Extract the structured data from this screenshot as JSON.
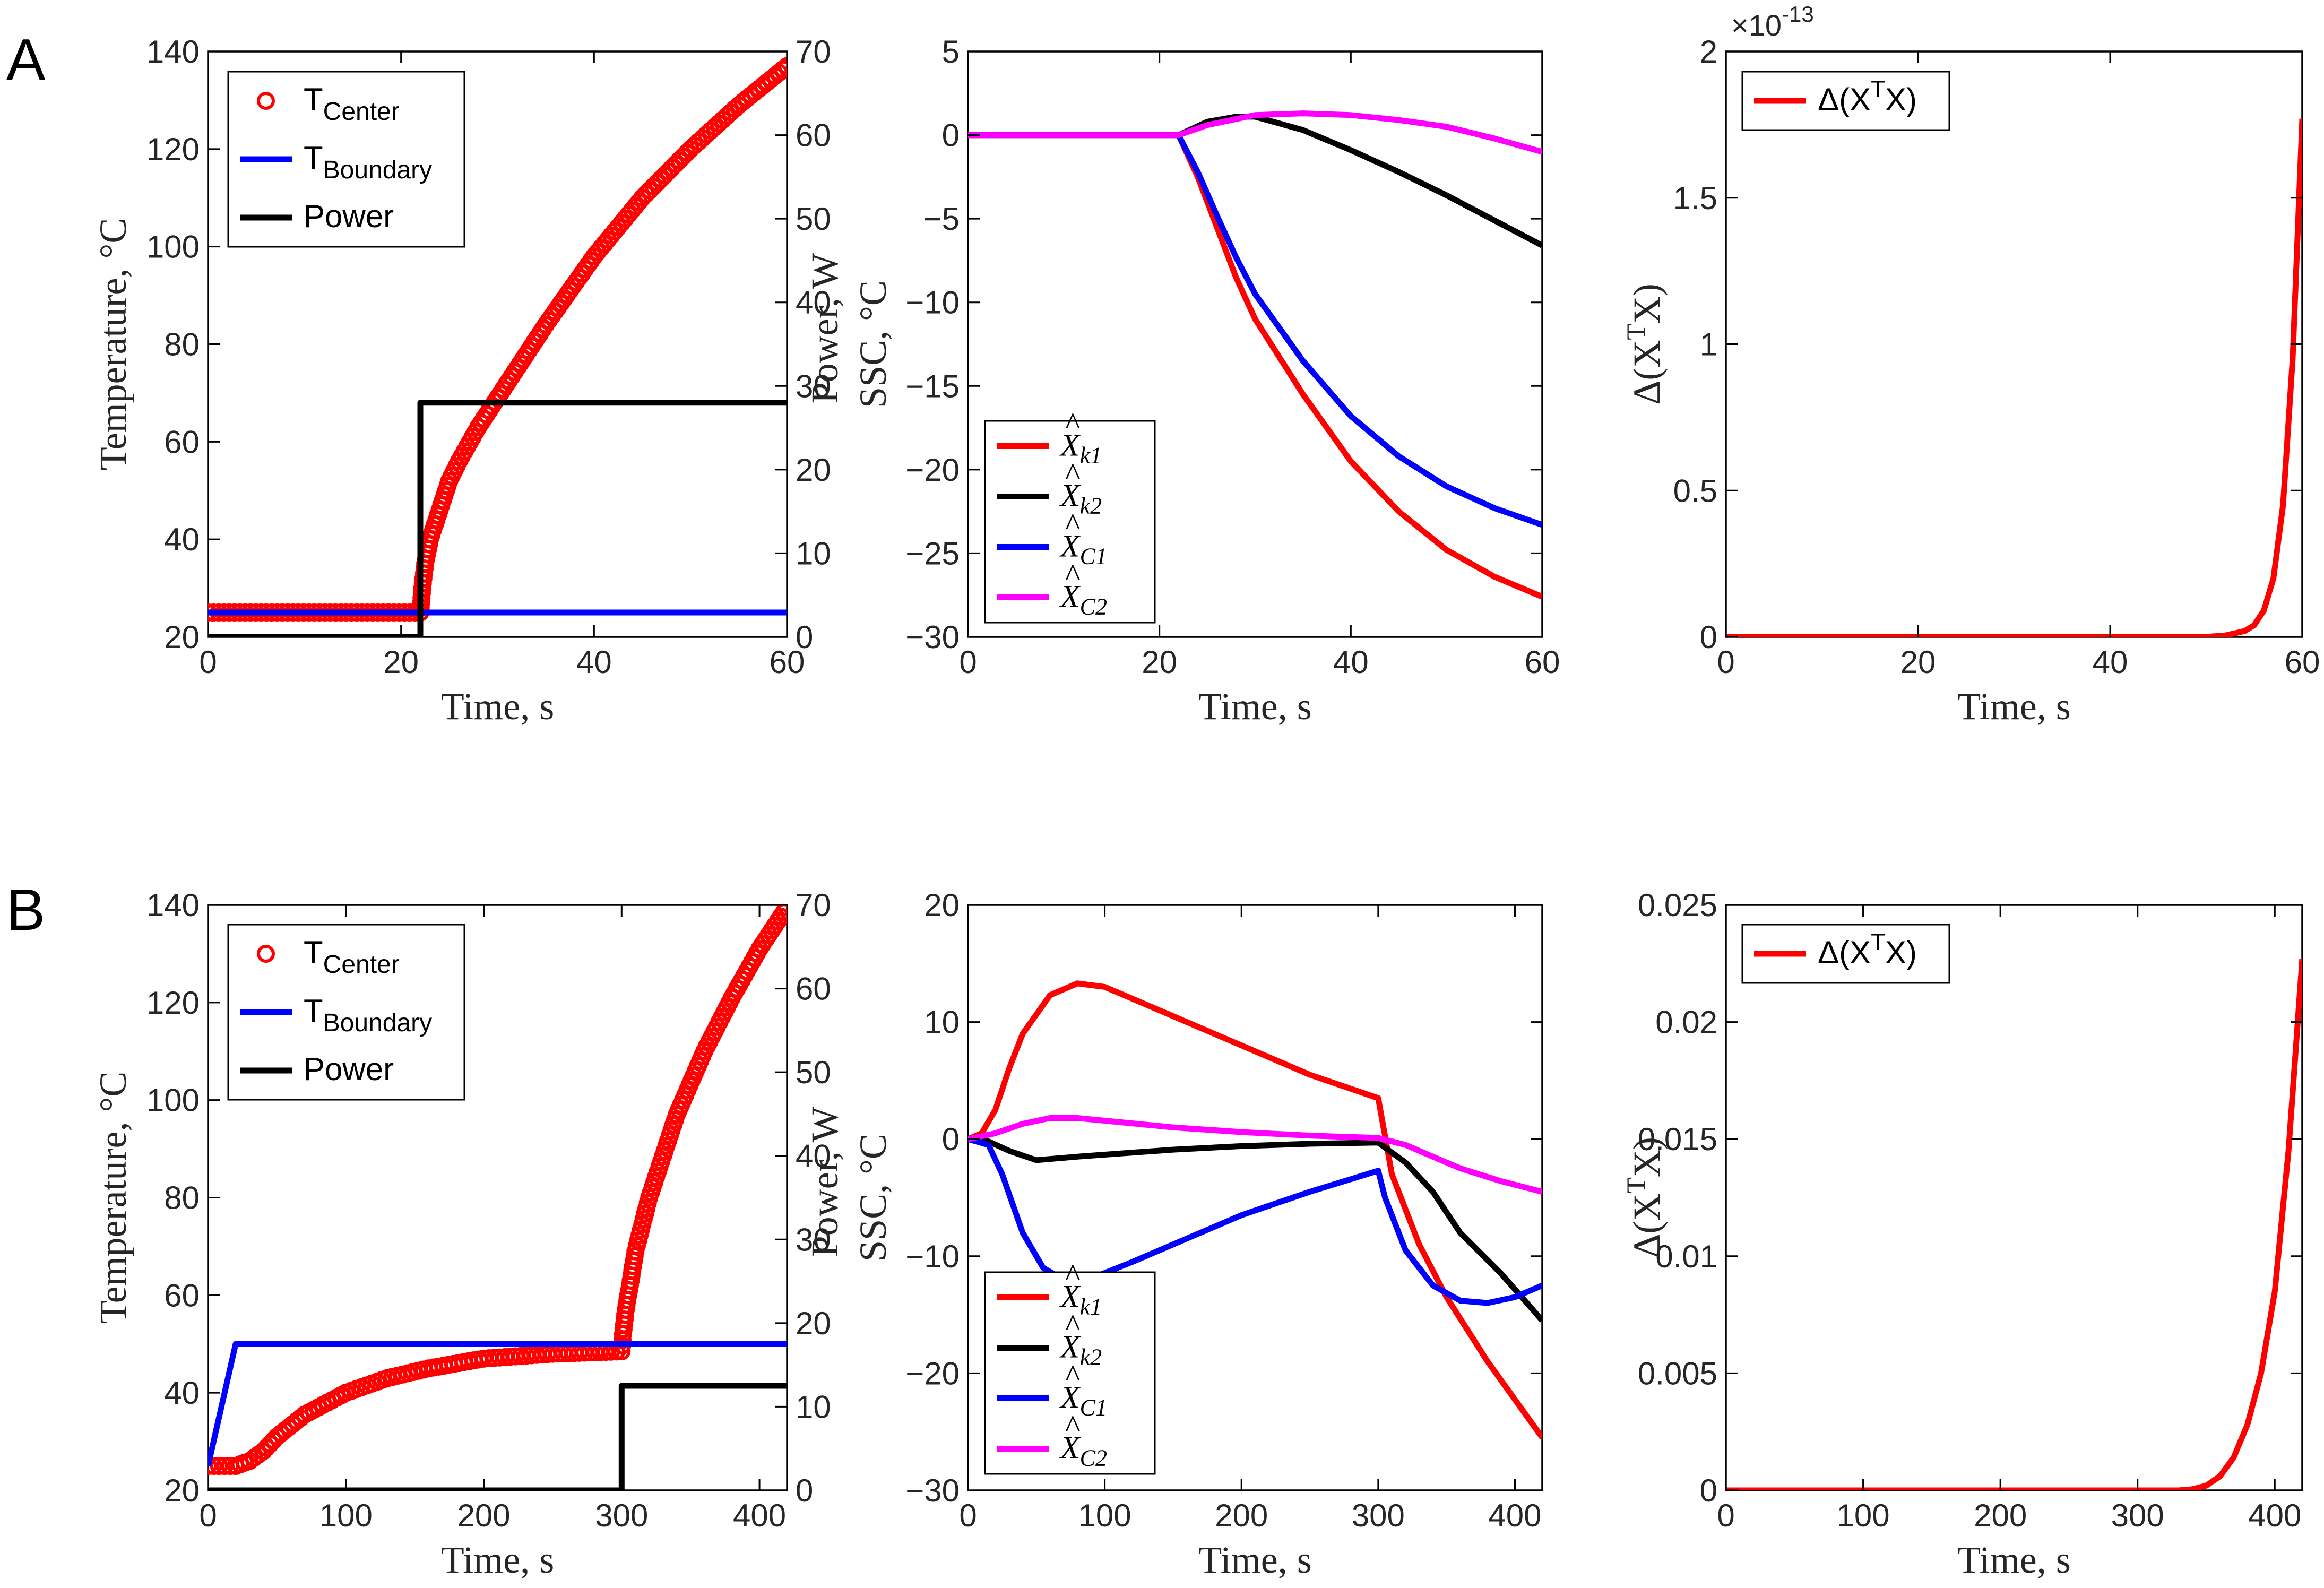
{
  "figure": {
    "panel_labels": [
      "A",
      "B"
    ]
  },
  "chart_data": [
    {
      "id": "A1",
      "type": "line",
      "panel": "A",
      "xlabel": "Time, s",
      "ylabel": "Temperature, °C",
      "ylabel_right": "Power, W",
      "xlim": [
        0,
        60
      ],
      "ylim": [
        20,
        140
      ],
      "ylim_right": [
        0,
        70
      ],
      "xticks": [
        0,
        20,
        40,
        60
      ],
      "yticks": [
        20,
        40,
        60,
        80,
        100,
        120,
        140
      ],
      "yticks_right": [
        0,
        10,
        20,
        30,
        40,
        50,
        60,
        70
      ],
      "grid": false,
      "legend_position": "top-left",
      "series": [
        {
          "name": "T",
          "name_sub": "Center",
          "color": "#ff0000",
          "marker": "circle",
          "axis": "left",
          "x": [
            0,
            22,
            22.2,
            22.5,
            23,
            24,
            25,
            26,
            28,
            30,
            35,
            40,
            45,
            50,
            55,
            60
          ],
          "y": [
            25,
            25,
            30,
            35,
            40,
            46,
            52,
            56,
            63,
            69,
            84,
            98,
            110,
            120,
            129,
            137
          ]
        },
        {
          "name": "T",
          "name_sub": "Boundary",
          "color": "#0000ff",
          "marker": "none",
          "axis": "left",
          "x": [
            0,
            60
          ],
          "y": [
            25,
            25
          ]
        },
        {
          "name": "Power",
          "color": "#000000",
          "marker": "none",
          "axis": "right",
          "x": [
            0,
            22,
            22,
            60
          ],
          "y": [
            0,
            0,
            28,
            28
          ]
        }
      ]
    },
    {
      "id": "A2",
      "type": "line",
      "panel": "A",
      "xlabel": "Time, s",
      "ylabel": "SSC, °C",
      "xlim": [
        0,
        60
      ],
      "ylim": [
        -30,
        5
      ],
      "xticks": [
        0,
        20,
        40,
        60
      ],
      "yticks": [
        -30,
        -25,
        -20,
        -15,
        -10,
        -5,
        0,
        5
      ],
      "grid": false,
      "legend_position": "bottom-left",
      "series": [
        {
          "name": "X",
          "name_sub": "k1",
          "color": "#ff0000",
          "x": [
            0,
            22,
            24,
            26,
            28,
            30,
            35,
            40,
            45,
            50,
            55,
            60
          ],
          "y": [
            0,
            0,
            -2.5,
            -5.5,
            -8.5,
            -11,
            -15.5,
            -19.5,
            -22.5,
            -24.8,
            -26.4,
            -27.6
          ]
        },
        {
          "name": "X",
          "name_sub": "k2",
          "color": "#000000",
          "x": [
            0,
            22,
            25,
            28,
            30,
            35,
            40,
            45,
            50,
            55,
            60
          ],
          "y": [
            0,
            0,
            0.8,
            1.1,
            1.1,
            0.3,
            -0.9,
            -2.2,
            -3.6,
            -5.1,
            -6.6
          ]
        },
        {
          "name": "X",
          "name_sub": "C1",
          "color": "#0000ff",
          "x": [
            0,
            22,
            24,
            26,
            28,
            30,
            35,
            40,
            45,
            50,
            55,
            60
          ],
          "y": [
            0,
            0,
            -2.2,
            -4.8,
            -7.3,
            -9.5,
            -13.5,
            -16.8,
            -19.2,
            -21,
            -22.3,
            -23.3
          ]
        },
        {
          "name": "X",
          "name_sub": "C2",
          "color": "#ff00ff",
          "x": [
            0,
            22,
            25,
            30,
            35,
            40,
            45,
            50,
            55,
            60
          ],
          "y": [
            0,
            0,
            0.6,
            1.2,
            1.3,
            1.2,
            0.9,
            0.5,
            -0.2,
            -1
          ]
        }
      ]
    },
    {
      "id": "A3",
      "type": "line",
      "panel": "A",
      "xlabel": "Time, s",
      "ylabel": "Δ(XTX)",
      "exponent_label": "×10",
      "exponent_power": "-13",
      "xlim": [
        0,
        60
      ],
      "ylim": [
        0,
        2
      ],
      "xticks": [
        0,
        20,
        40,
        60
      ],
      "yticks": [
        0,
        0.5,
        1,
        1.5,
        2
      ],
      "grid": false,
      "legend_position": "top-left",
      "series": [
        {
          "name": "Δ(XTX)",
          "color": "#ff0000",
          "x": [
            0,
            50,
            52,
            54,
            55,
            56,
            57,
            58,
            59,
            60
          ],
          "y": [
            0,
            0,
            0.005,
            0.02,
            0.04,
            0.09,
            0.2,
            0.45,
            0.95,
            1.77
          ]
        }
      ]
    },
    {
      "id": "B1",
      "type": "line",
      "panel": "B",
      "xlabel": "Time, s",
      "ylabel": "Temperature, °C",
      "ylabel_right": "Power, W",
      "xlim": [
        0,
        420
      ],
      "ylim": [
        20,
        140
      ],
      "ylim_right": [
        0,
        70
      ],
      "xticks": [
        0,
        100,
        200,
        300,
        400
      ],
      "yticks": [
        20,
        40,
        60,
        80,
        100,
        120,
        140
      ],
      "yticks_right": [
        0,
        10,
        20,
        30,
        40,
        50,
        60,
        70
      ],
      "grid": false,
      "legend_position": "top-left",
      "series": [
        {
          "name": "T",
          "name_sub": "Center",
          "color": "#ff0000",
          "marker": "circle",
          "axis": "left",
          "x": [
            0,
            20,
            30,
            40,
            50,
            70,
            100,
            130,
            160,
            200,
            250,
            300,
            301,
            303,
            306,
            310,
            320,
            340,
            360,
            380,
            400,
            420
          ],
          "y": [
            25,
            25,
            26,
            28,
            31,
            35.5,
            40,
            43,
            45,
            47,
            48,
            48.5,
            52,
            57,
            62,
            69,
            80,
            97,
            110,
            121,
            131,
            139.5
          ]
        },
        {
          "name": "T",
          "name_sub": "Boundary",
          "color": "#0000ff",
          "marker": "none",
          "axis": "left",
          "x": [
            0,
            20,
            420
          ],
          "y": [
            25,
            50,
            50
          ]
        },
        {
          "name": "Power",
          "color": "#000000",
          "marker": "none",
          "axis": "right",
          "x": [
            0,
            300,
            300,
            420
          ],
          "y": [
            0,
            0,
            12.5,
            12.5
          ]
        }
      ]
    },
    {
      "id": "B2",
      "type": "line",
      "panel": "B",
      "xlabel": "Time, s",
      "ylabel": "SSC, °C",
      "xlim": [
        0,
        420
      ],
      "ylim": [
        -30,
        20
      ],
      "xticks": [
        0,
        100,
        200,
        300,
        400
      ],
      "yticks": [
        -30,
        -20,
        -10,
        0,
        10,
        20
      ],
      "grid": false,
      "legend_position": "bottom-left",
      "series": [
        {
          "name": "X",
          "name_sub": "k1",
          "color": "#ff0000",
          "x": [
            0,
            10,
            20,
            30,
            40,
            60,
            80,
            100,
            150,
            200,
            250,
            300,
            310,
            330,
            350,
            380,
            420
          ],
          "y": [
            0,
            0.5,
            2.5,
            6,
            9,
            12.3,
            13.3,
            13,
            10.5,
            8,
            5.5,
            3.5,
            -3,
            -9,
            -13.5,
            -19,
            -25.5
          ]
        },
        {
          "name": "X",
          "name_sub": "k2",
          "color": "#000000",
          "x": [
            0,
            15,
            30,
            50,
            80,
            150,
            200,
            250,
            300,
            320,
            340,
            360,
            390,
            420
          ],
          "y": [
            0,
            -0.2,
            -1,
            -1.8,
            -1.5,
            -0.9,
            -0.6,
            -0.4,
            -0.3,
            -2,
            -4.5,
            -8,
            -11.5,
            -15.5
          ]
        },
        {
          "name": "X",
          "name_sub": "C1",
          "color": "#0000ff",
          "x": [
            0,
            15,
            25,
            40,
            55,
            70,
            90,
            120,
            150,
            200,
            250,
            300,
            305,
            320,
            340,
            360,
            380,
            400,
            420
          ],
          "y": [
            0,
            -0.5,
            -3,
            -8,
            -11,
            -12,
            -11.9,
            -10.5,
            -9,
            -6.5,
            -4.5,
            -2.7,
            -5,
            -9.5,
            -12.5,
            -13.8,
            -14,
            -13.5,
            -12.5
          ]
        },
        {
          "name": "X",
          "name_sub": "C2",
          "color": "#ff00ff",
          "x": [
            0,
            20,
            40,
            60,
            80,
            150,
            200,
            250,
            300,
            320,
            340,
            360,
            390,
            420
          ],
          "y": [
            0,
            0.5,
            1.3,
            1.8,
            1.8,
            1,
            0.6,
            0.3,
            0.1,
            -0.5,
            -1.5,
            -2.5,
            -3.6,
            -4.5
          ]
        }
      ]
    },
    {
      "id": "B3",
      "type": "line",
      "panel": "B",
      "xlabel": "Time, s",
      "ylabel": "Δ(XTX)",
      "xlim": [
        0,
        420
      ],
      "ylim": [
        0,
        0.025
      ],
      "xticks": [
        0,
        100,
        200,
        300,
        400
      ],
      "yticks": [
        0,
        0.005,
        0.01,
        0.015,
        0.02,
        0.025
      ],
      "grid": false,
      "legend_position": "top-left",
      "series": [
        {
          "name": "Δ(XTX)",
          "color": "#ff0000",
          "x": [
            0,
            330,
            340,
            350,
            360,
            370,
            380,
            390,
            400,
            410,
            420
          ],
          "y": [
            0,
            0,
            5e-05,
            0.0002,
            0.0006,
            0.0014,
            0.0028,
            0.005,
            0.0085,
            0.0145,
            0.0227
          ]
        }
      ]
    }
  ]
}
